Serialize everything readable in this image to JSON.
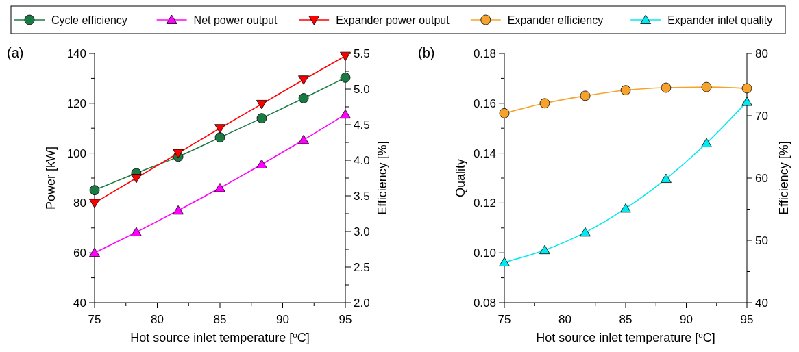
{
  "chart_data": [
    {
      "type": "line",
      "xlabel": "Hot source inlet temperature [$^{o}$C]",
      "ylabel": "Power [kW]",
      "y2label": "Efficiency [%]",
      "annotations": [
        "(a)"
      ],
      "legend": "top",
      "grid": false,
      "line_style": "solid",
      "x": [
        75,
        78.33,
        81.67,
        85,
        88.33,
        91.67,
        95
      ],
      "xlim": [
        75,
        95
      ],
      "xticks": [
        75,
        {
          "value": 77.5,
          "label": null
        },
        80,
        {
          "value": 82.5,
          "label": null
        },
        85,
        {
          "value": 87.5,
          "label": null
        },
        90,
        {
          "value": 92.5,
          "label": null
        },
        95
      ],
      "ylim": [
        40,
        140
      ],
      "yticks": [
        40,
        {
          "value": 50,
          "label": null
        },
        60,
        {
          "value": 70,
          "label": null
        },
        80,
        {
          "value": 90,
          "label": null
        },
        100,
        {
          "value": 110,
          "label": null
        },
        120,
        {
          "value": 130,
          "label": null
        },
        140
      ],
      "y2lim": [
        2,
        5.5
      ],
      "y2ticks": [
        {
          "value": 2,
          "label": "2.0"
        },
        {
          "value": 2.25,
          "label": null
        },
        2.5,
        {
          "value": 2.75,
          "label": null
        },
        {
          "value": 3,
          "label": "3.0"
        },
        {
          "value": 3.25,
          "label": null
        },
        3.5,
        {
          "value": 3.75,
          "label": null
        },
        {
          "value": 4,
          "label": "4.0"
        },
        {
          "value": 4.25,
          "label": null
        },
        4.5,
        {
          "value": 4.75,
          "label": null
        },
        {
          "value": 5,
          "label": "5.0"
        },
        {
          "value": 5.25,
          "label": null
        },
        5.5
      ],
      "series": [
        {
          "name": "Cycle efficiency",
          "color": "#1b7a44",
          "marker": "circle",
          "axis": "y2",
          "values": [
            3.58,
            3.82,
            4.05,
            4.32,
            4.59,
            4.87,
            5.16
          ]
        },
        {
          "name": "Net power output",
          "color": "#ff00ff",
          "marker": "triangle",
          "values": [
            60,
            68.3,
            77,
            86,
            95.5,
            105.3,
            115.5
          ]
        },
        {
          "name": "Expander power output",
          "color": "#ff0000",
          "marker": "triangle-down",
          "values": [
            80,
            90,
            100,
            110,
            119.7,
            129.5,
            139
          ]
        }
      ]
    },
    {
      "type": "line",
      "xlabel": "Hot source inlet temperature [$^{o}$C]",
      "ylabel": "Quality",
      "y2label": "Efficiency [%]",
      "annotations": [
        "(b)"
      ],
      "legend": "top",
      "grid": false,
      "line_style": "solid",
      "x": [
        75,
        78.33,
        81.67,
        85,
        88.33,
        91.67,
        95
      ],
      "xlim": [
        75,
        95
      ],
      "xticks": [
        75,
        {
          "value": 77.5,
          "label": null
        },
        80,
        {
          "value": 82.5,
          "label": null
        },
        85,
        {
          "value": 87.5,
          "label": null
        },
        90,
        {
          "value": 92.5,
          "label": null
        },
        95
      ],
      "ylim": [
        0.08,
        0.18
      ],
      "yticks": [
        0.08,
        {
          "value": 0.09,
          "label": null
        },
        {
          "value": 0.1,
          "label": "0.10"
        },
        {
          "value": 0.11,
          "label": null
        },
        0.12,
        {
          "value": 0.13,
          "label": null
        },
        0.14,
        {
          "value": 0.15,
          "label": null
        },
        0.16,
        {
          "value": 0.17,
          "label": null
        },
        0.18
      ],
      "y2lim": [
        40,
        80
      ],
      "y2ticks": [
        40,
        {
          "value": 45,
          "label": null
        },
        50,
        {
          "value": 55,
          "label": null
        },
        60,
        {
          "value": 65,
          "label": null
        },
        70,
        {
          "value": 75,
          "label": null
        },
        80
      ],
      "series": [
        {
          "name": "Expander efficiency",
          "color": "#f7a32b",
          "marker": "circle",
          "axis": "y2",
          "values": [
            70.4,
            72.0,
            73.2,
            74.1,
            74.5,
            74.6,
            74.4
          ]
        },
        {
          "name": "Expander inlet quality",
          "color": "#00e8f0",
          "marker": "triangle",
          "values": [
            0.0962,
            0.1011,
            0.1082,
            0.1178,
            0.1297,
            0.144,
            0.1606
          ]
        }
      ]
    }
  ]
}
